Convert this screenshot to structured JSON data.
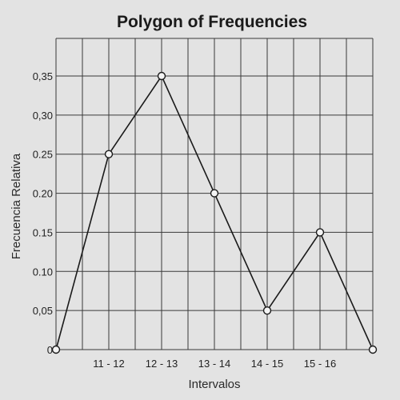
{
  "chart_data": {
    "type": "line",
    "title": "Polygon of Frequencies",
    "xlabel": "Intervalos",
    "ylabel": "Frecuencia Relativa",
    "categories": [
      "",
      "11 - 12",
      "12 - 13",
      "13 - 14",
      "14 - 15",
      "15 - 16",
      ""
    ],
    "series": [
      {
        "values": [
          0,
          0.25,
          0.35,
          0.2,
          0.05,
          0.15,
          0
        ]
      }
    ],
    "yticks": [
      0,
      0.05,
      0.1,
      0.15,
      0.2,
      0.25,
      0.3,
      0.35
    ],
    "ytick_labels": [
      "0",
      "0,05",
      "0.10",
      "0.15",
      "0.20",
      "0.25",
      "0,30",
      "0,35"
    ],
    "ylim": [
      0,
      0.35
    ],
    "grid": true,
    "legend": "none"
  }
}
